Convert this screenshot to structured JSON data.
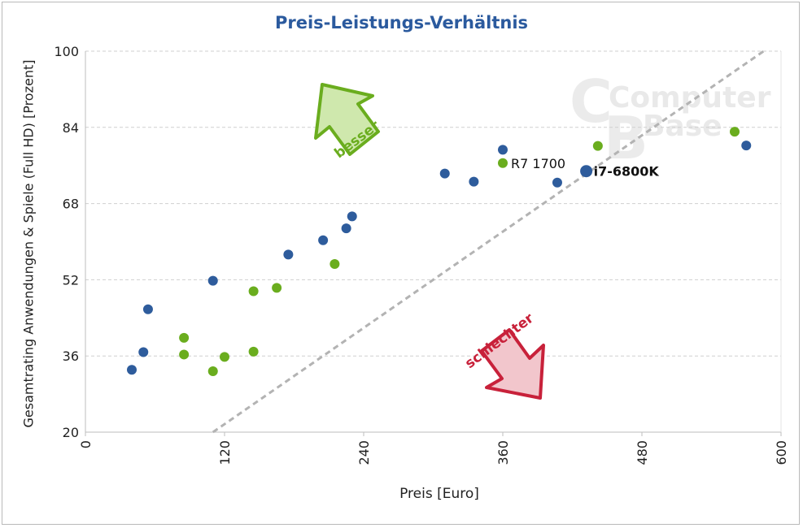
{
  "chart_data": {
    "type": "scatter",
    "title": "Preis-Leistungs-Verhältnis",
    "xlabel": "Preis [Euro]",
    "ylabel": "Gesamtrating Anwendungen & Spiele (Full HD) [Prozent]",
    "xlim": [
      0,
      600
    ],
    "ylim": [
      20,
      100
    ],
    "x_ticks": [
      "0",
      "120",
      "240",
      "360",
      "480",
      "600"
    ],
    "y_ticks": [
      "20",
      "36",
      "52",
      "68",
      "84",
      "100"
    ],
    "grid": "horizontal dashed",
    "colors": {
      "blue": "#2e5c9c",
      "green": "#6aad1e",
      "diagonal": "#b3b3b3",
      "arrow_good": "#6aad1e",
      "arrow_bad": "#c8213a"
    },
    "series": [
      {
        "color": "blue",
        "points": [
          {
            "x": 40,
            "y": 33.1
          },
          {
            "x": 50,
            "y": 36.8
          },
          {
            "x": 54,
            "y": 45.8
          },
          {
            "x": 110,
            "y": 51.8
          },
          {
            "x": 175,
            "y": 57.3
          },
          {
            "x": 205,
            "y": 60.3
          },
          {
            "x": 225,
            "y": 62.8
          },
          {
            "x": 230,
            "y": 65.3
          },
          {
            "x": 310,
            "y": 74.3
          },
          {
            "x": 335,
            "y": 72.6
          },
          {
            "x": 360,
            "y": 79.3
          },
          {
            "x": 407,
            "y": 72.4
          },
          {
            "x": 570,
            "y": 80.2
          }
        ]
      },
      {
        "color": "green",
        "points": [
          {
            "x": 85,
            "y": 39.8
          },
          {
            "x": 85,
            "y": 36.3
          },
          {
            "x": 110,
            "y": 32.8
          },
          {
            "x": 120,
            "y": 35.8
          },
          {
            "x": 145,
            "y": 49.6
          },
          {
            "x": 145,
            "y": 36.9
          },
          {
            "x": 165,
            "y": 50.3
          },
          {
            "x": 215,
            "y": 55.3
          },
          {
            "x": 442,
            "y": 80.1
          },
          {
            "x": 560,
            "y": 83.1
          }
        ]
      }
    ],
    "labeled_points": [
      {
        "label": "R7 1700",
        "x": 360,
        "y": 76.5,
        "color": "green"
      },
      {
        "label": "i7-6800K",
        "x": 432,
        "y": 74.8,
        "color": "blue"
      }
    ],
    "diagonal_line": {
      "from": [
        110,
        20
      ],
      "to": [
        585,
        100
      ]
    },
    "annotations": {
      "better": "besser",
      "worse": "schlechter"
    },
    "watermark": {
      "line1": "Computer",
      "line2": "Base"
    }
  }
}
